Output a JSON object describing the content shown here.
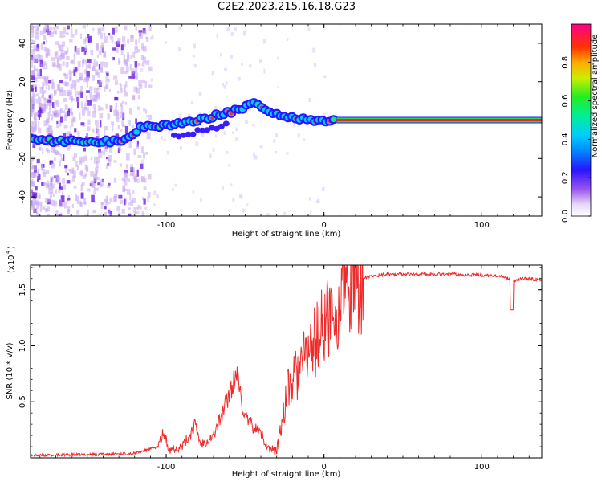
{
  "title": "C2E2.2023.215.16.18.G23",
  "chart_data": [
    {
      "type": "heatmap",
      "xlabel": "Height of straight line (km)",
      "ylabel": "Frequency (Hz)",
      "xlim": [
        -186,
        138
      ],
      "ylim": [
        -50,
        50
      ],
      "xticks": [
        -100,
        0,
        100
      ],
      "yticks": [
        -40,
        -20,
        0,
        20,
        40
      ],
      "colorbar": {
        "label": "Normalized spectral amplitude",
        "range": [
          0,
          1
        ],
        "ticks": [
          0.0,
          0.2,
          0.4,
          0.6,
          0.8
        ]
      },
      "ridge": {
        "x": [
          -186,
          -170,
          -150,
          -135,
          -125,
          -115,
          -100,
          -90,
          -80,
          -70,
          -60,
          -50,
          -44,
          -38,
          -30,
          -20,
          -10,
          0,
          8,
          20,
          50,
          100,
          138
        ],
        "y": [
          -10,
          -11,
          -11,
          -11,
          -10,
          -3,
          -3,
          -2,
          0,
          2,
          4,
          7,
          10,
          6,
          3,
          1,
          0,
          -1,
          0,
          0,
          0,
          0,
          0
        ]
      }
    },
    {
      "type": "line",
      "xlabel": "Height of straight line (km)",
      "ylabel": "SNR (10 * v/v)",
      "y_multiplier": "(x10",
      "y_multiplier_exp": "4",
      "y_multiplier_close": ")",
      "xlim": [
        -186,
        138
      ],
      "ylim": [
        0,
        1.72
      ],
      "xticks": [
        -100,
        0,
        100
      ],
      "yticks": [
        0.5,
        1.0,
        1.5
      ],
      "series": [
        {
          "color": "#ee2a2a",
          "x": [
            -186,
            -150,
            -120,
            -105,
            -102,
            -98,
            -90,
            -85,
            -82,
            -78,
            -70,
            -65,
            -58,
            -55,
            -50,
            -45,
            -40,
            -35,
            -30,
            -26,
            -24,
            -20,
            -15,
            -10,
            -5,
            0,
            5,
            10,
            15,
            20,
            25,
            30,
            40,
            60,
            80,
            100,
            110,
            118,
            120,
            125,
            138
          ],
          "y": [
            0.02,
            0.03,
            0.04,
            0.1,
            0.22,
            0.08,
            0.1,
            0.2,
            0.3,
            0.12,
            0.2,
            0.38,
            0.65,
            0.72,
            0.35,
            0.28,
            0.22,
            0.08,
            0.06,
            0.38,
            0.56,
            0.68,
            0.8,
            0.95,
            1.05,
            1.2,
            1.3,
            1.42,
            1.48,
            1.55,
            1.6,
            1.62,
            1.64,
            1.64,
            1.64,
            1.63,
            1.62,
            1.6,
            1.58,
            1.6,
            1.59
          ]
        }
      ]
    }
  ]
}
